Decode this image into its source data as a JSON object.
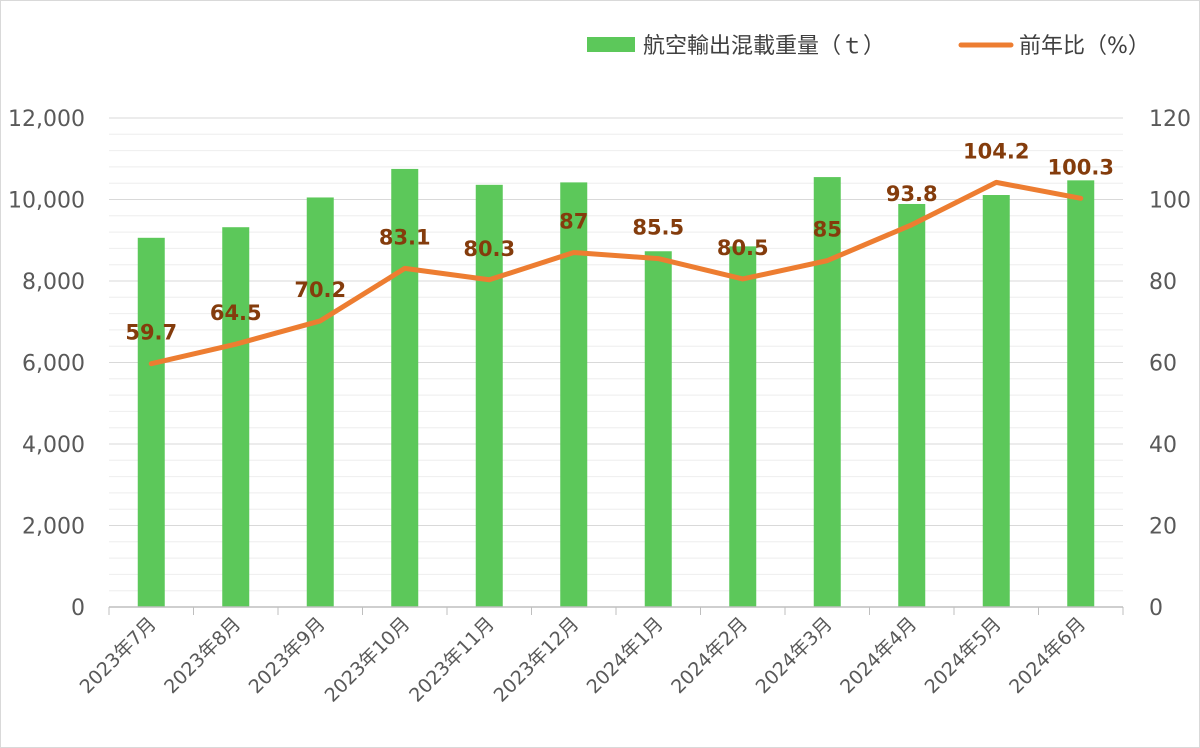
{
  "chart_data": {
    "type": "bar+line",
    "categories": [
      "2023年7月",
      "2023年8月",
      "2023年9月",
      "2023年10月",
      "2023年11月",
      "2023年12月",
      "2024年1月",
      "2024年2月",
      "2024年3月",
      "2024年4月",
      "2024年5月",
      "2024年6月"
    ],
    "series": [
      {
        "name": "航空輸出混載重量（ｔ）",
        "type": "bar",
        "axis": "left",
        "color": "#5cc85a",
        "values": [
          9060,
          9320,
          10050,
          10750,
          10360,
          10420,
          8730,
          8850,
          10550,
          9890,
          10110,
          10470
        ]
      },
      {
        "name": "前年比（%）",
        "type": "line",
        "axis": "right",
        "color": "#ed7d31",
        "values": [
          59.7,
          64.5,
          70.2,
          83.1,
          80.3,
          87,
          85.5,
          80.5,
          85,
          93.8,
          104.2,
          100.3
        ],
        "data_labels": [
          "59.7",
          "64.5",
          "70.2",
          "83.1",
          "80.3",
          "87",
          "85.5",
          "80.5",
          "85",
          "93.8",
          "104.2",
          "100.3"
        ]
      }
    ],
    "y_left": {
      "min": 0,
      "max": 12000,
      "ticks": [
        "0",
        "2,000",
        "4,000",
        "6,000",
        "8,000",
        "10,000",
        "12,000"
      ]
    },
    "y_right": {
      "min": 0,
      "max": 120,
      "ticks": [
        "0",
        "20",
        "40",
        "60",
        "80",
        "100",
        "120"
      ]
    },
    "grid": true,
    "legend_position": "top-right",
    "data_label_color": "#843c0c"
  }
}
